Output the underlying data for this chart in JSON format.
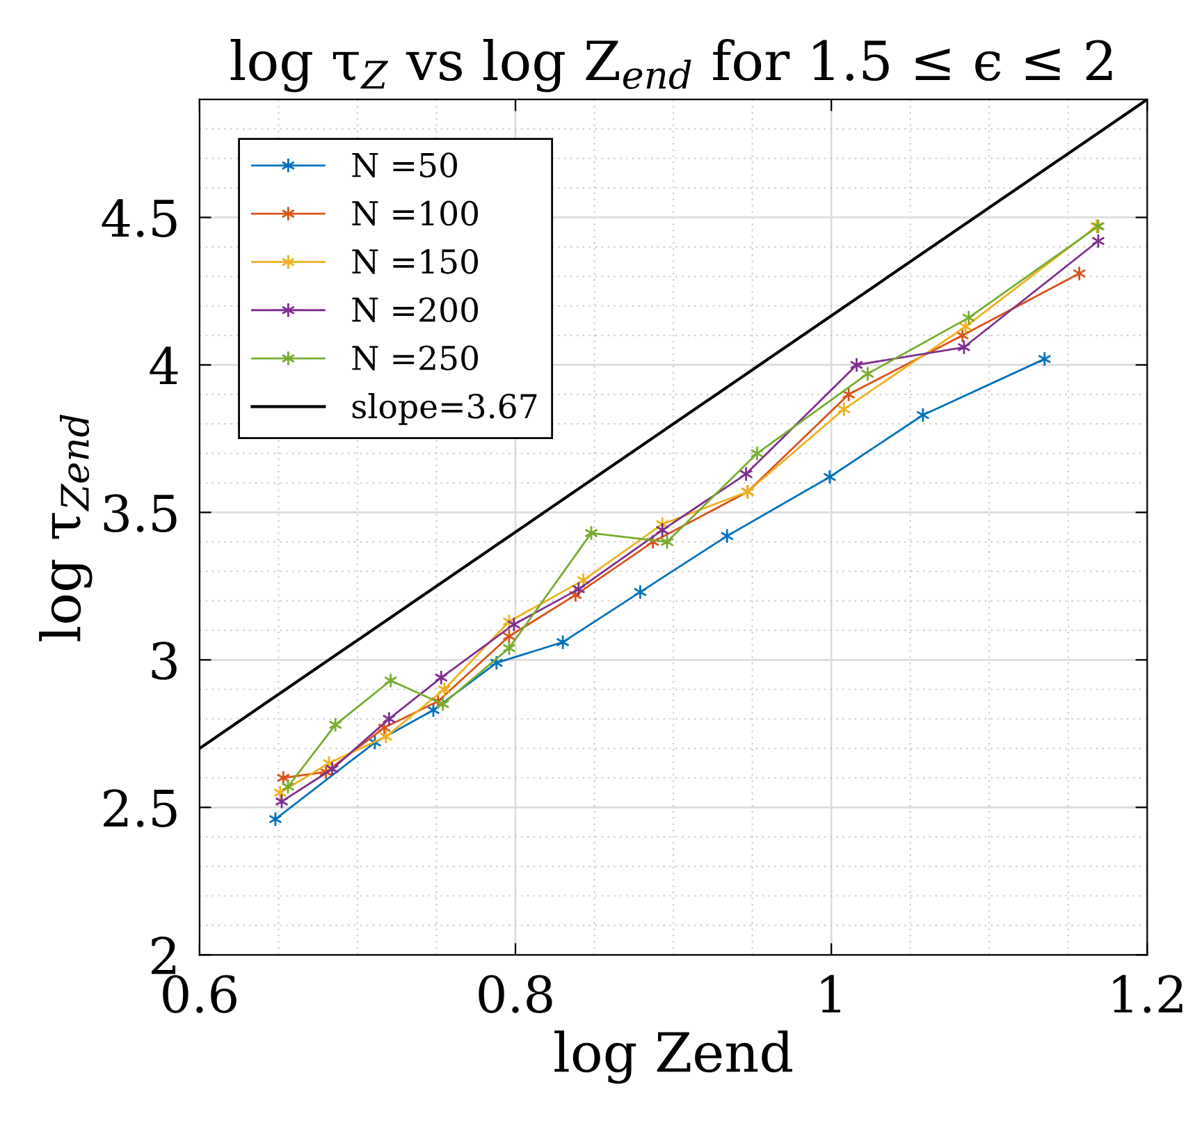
{
  "chart_data": {
    "type": "line",
    "title": "log τ$_{Z}$ vs log Z$_{end}$ for 1.5 ≤ ϵ ≤ 2",
    "xlabel": "log Zend",
    "ylabel": "log τ$_{Zend}$",
    "xlim": [
      0.6,
      1.2
    ],
    "xticks": [
      0.6,
      0.8,
      1,
      1.2
    ],
    "ylim": [
      2,
      4.9
    ],
    "yticks": [
      2,
      2.5,
      3,
      3.5,
      4,
      4.5
    ],
    "grid": true,
    "legend": "top left",
    "marker": "cross",
    "series": [
      {
        "name": "N =50",
        "color": "#0072bd",
        "x": [
          0.648,
          0.711,
          0.748,
          0.788,
          0.83,
          0.879,
          0.934,
          0.999,
          1.058,
          1.135
        ],
        "values": [
          2.46,
          2.72,
          2.83,
          2.99,
          3.06,
          3.23,
          3.42,
          3.62,
          3.83,
          4.02
        ]
      },
      {
        "name": "N =100",
        "color": "#d95319",
        "x": [
          0.653,
          0.68,
          0.717,
          0.751,
          0.796,
          0.838,
          0.887,
          0.947,
          1.011,
          1.083,
          1.157
        ],
        "values": [
          2.6,
          2.62,
          2.77,
          2.86,
          3.08,
          3.22,
          3.4,
          3.57,
          3.9,
          4.1,
          4.31
        ]
      },
      {
        "name": "N =150",
        "color": "#edb120",
        "x": [
          0.651,
          0.682,
          0.718,
          0.755,
          0.796,
          0.843,
          0.893,
          0.947,
          1.008,
          1.085,
          1.168
        ],
        "values": [
          2.55,
          2.65,
          2.74,
          2.9,
          3.13,
          3.27,
          3.46,
          3.57,
          3.85,
          4.13,
          4.47
        ]
      },
      {
        "name": "N =200",
        "color": "#7e2f8e",
        "x": [
          0.652,
          0.684,
          0.72,
          0.753,
          0.799,
          0.84,
          0.893,
          0.946,
          1.016,
          1.084,
          1.169
        ],
        "values": [
          2.52,
          2.63,
          2.8,
          2.94,
          3.12,
          3.24,
          3.44,
          3.63,
          4.0,
          4.06,
          4.42
        ]
      },
      {
        "name": "N =250",
        "color": "#77ac30",
        "x": [
          0.656,
          0.686,
          0.721,
          0.754,
          0.796,
          0.848,
          0.896,
          0.953,
          1.023,
          1.087,
          1.169
        ],
        "values": [
          2.57,
          2.78,
          2.93,
          2.85,
          3.04,
          3.43,
          3.4,
          3.7,
          3.97,
          4.16,
          4.47
        ]
      },
      {
        "name": "slope=3.67",
        "color": "#000000",
        "marker": "none",
        "x": [
          0.6,
          1.2
        ],
        "values": [
          2.7,
          4.9
        ]
      }
    ]
  }
}
